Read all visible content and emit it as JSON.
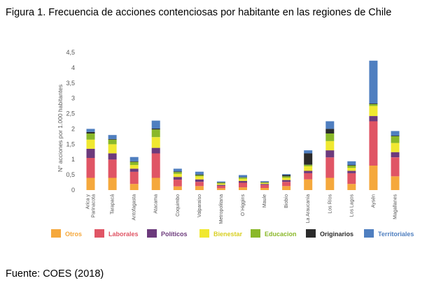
{
  "caption": "Figura 1. Frecuencia de acciones contenciosas por habitante en las regiones de Chile",
  "source": "Fuente: COES (2018)",
  "colors": {
    "Otros": "#f5a83c",
    "Laborales": "#e05565",
    "Políticos": "#6c3a7c",
    "Bienestar": "#f0e830",
    "Educacion": "#8ab829",
    "Originarios": "#2b2b2b",
    "Territoriales": "#4f7fc0"
  },
  "chart_data": {
    "type": "bar",
    "stacked": true,
    "title": "",
    "xlabel": "",
    "ylabel": "N° acciones por 1.000 habitantes",
    "ylim": [
      0,
      4.5
    ],
    "yticks": [
      "0",
      "0,5",
      "1",
      "1,5",
      "2",
      "2,5",
      "3",
      "3,5",
      "4",
      "4,5"
    ],
    "grid": false,
    "legend": "bottom",
    "categories": [
      "Arica y Parinacota",
      "Tarapacá",
      "Antofagasta",
      "Atacama",
      "Coquimbo",
      "Valparaíso",
      "Metropolitana",
      "O´Higgins",
      "Maule",
      "Biobío",
      "La Araucanía",
      "Los Ríos",
      "Los Lagos",
      "Aysén",
      "Magallanes"
    ],
    "series": [
      {
        "name": "Otros",
        "values": [
          0.4,
          0.4,
          0.2,
          0.4,
          0.12,
          0.13,
          0.06,
          0.09,
          0.07,
          0.13,
          0.35,
          0.4,
          0.2,
          0.8,
          0.45
        ]
      },
      {
        "name": "Laborales",
        "values": [
          0.65,
          0.6,
          0.4,
          0.8,
          0.22,
          0.14,
          0.08,
          0.15,
          0.1,
          0.14,
          0.2,
          0.67,
          0.35,
          1.45,
          0.62
        ]
      },
      {
        "name": "Políticos",
        "values": [
          0.3,
          0.2,
          0.1,
          0.18,
          0.09,
          0.08,
          0.03,
          0.06,
          0.03,
          0.06,
          0.08,
          0.23,
          0.08,
          0.17,
          0.17
        ]
      },
      {
        "name": "Bienestar",
        "values": [
          0.3,
          0.3,
          0.12,
          0.35,
          0.1,
          0.1,
          0.04,
          0.07,
          0.03,
          0.07,
          0.15,
          0.3,
          0.1,
          0.33,
          0.3
        ]
      },
      {
        "name": "Educacion",
        "values": [
          0.2,
          0.15,
          0.1,
          0.25,
          0.06,
          0.04,
          0.03,
          0.04,
          0.02,
          0.05,
          0.05,
          0.25,
          0.07,
          0.06,
          0.22
        ]
      },
      {
        "name": "Originarios",
        "values": [
          0.05,
          0.02,
          0.02,
          0.03,
          0.02,
          0.02,
          0.01,
          0.01,
          0.01,
          0.04,
          0.37,
          0.15,
          0.02,
          0.02,
          0.02
        ]
      },
      {
        "name": "Territoriales",
        "values": [
          0.1,
          0.13,
          0.14,
          0.26,
          0.09,
          0.09,
          0.03,
          0.07,
          0.03,
          0.03,
          0.1,
          0.25,
          0.12,
          1.4,
          0.15
        ]
      }
    ]
  }
}
